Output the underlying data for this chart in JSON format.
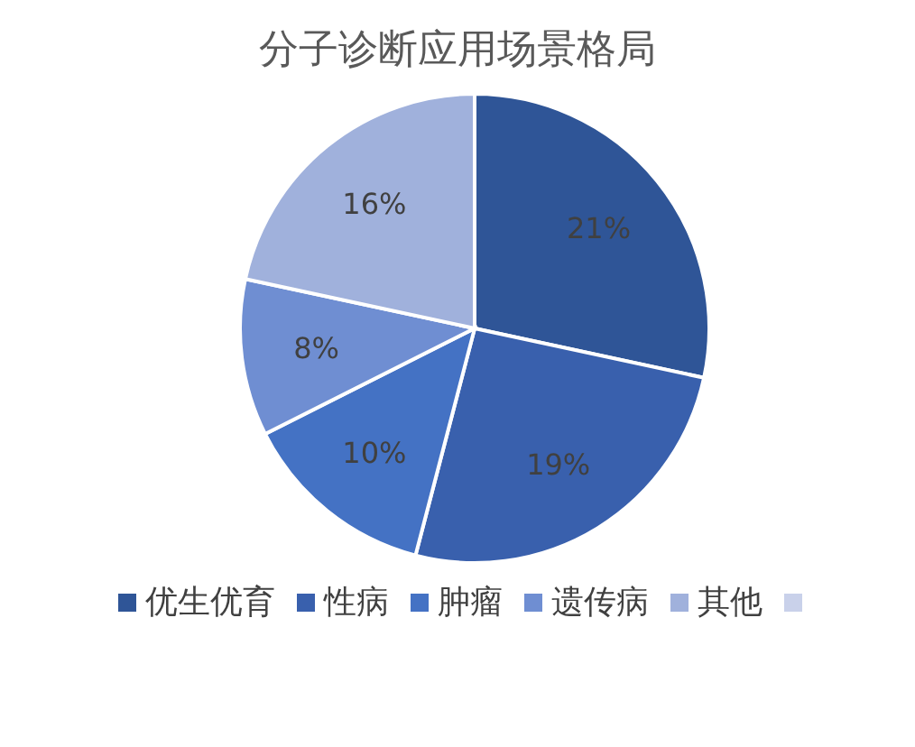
{
  "chart_data": {
    "type": "pie",
    "title": "分子诊断应用场景格局",
    "categories": [
      "优生优育",
      "性病",
      "肿瘤",
      "遗传病",
      "其他",
      null
    ],
    "values": [
      21,
      19,
      10,
      8,
      16,
      0
    ],
    "value_labels": [
      "21%",
      "19%",
      "10%",
      "8%",
      "16%",
      null
    ],
    "colors": [
      "#2f5597",
      "#3960ad",
      "#4472c4",
      "#6f8ed2",
      "#a0b1dc",
      "#c9d1ea"
    ],
    "legend": "bottom"
  }
}
